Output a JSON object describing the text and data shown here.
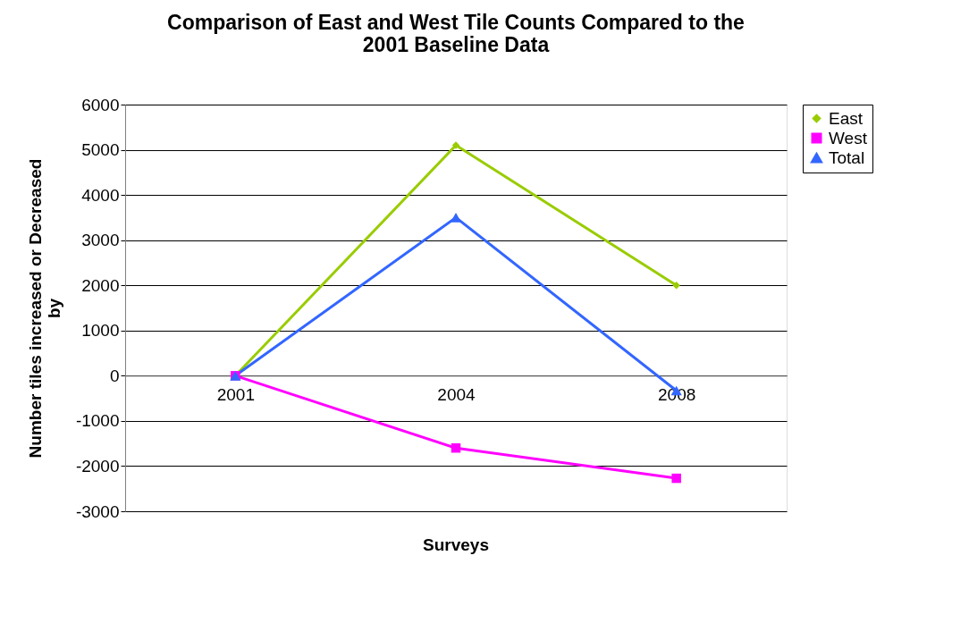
{
  "chart_data": {
    "type": "line",
    "title": "Comparison of East and West Tile Counts Compared to the\n2001 Baseline Data",
    "xlabel": "Surveys",
    "ylabel": "Number tiles increased or Decreased\nby",
    "categories": [
      "2001",
      "2004",
      "2008"
    ],
    "series": [
      {
        "name": "East",
        "color": "#99cc00",
        "marker": "diamond",
        "values": [
          0,
          5100,
          2000
        ]
      },
      {
        "name": "West",
        "color": "#ff00ff",
        "marker": "square",
        "values": [
          0,
          -1600,
          -2270
        ]
      },
      {
        "name": "Total",
        "color": "#3366ff",
        "marker": "triangle",
        "values": [
          0,
          3500,
          -330
        ]
      }
    ],
    "ylim": [
      -3000,
      6000
    ],
    "yticks": [
      -3000,
      -2000,
      -1000,
      0,
      1000,
      2000,
      3000,
      4000,
      5000,
      6000
    ],
    "grid": "y",
    "legend": "right",
    "line_style": "solid"
  }
}
